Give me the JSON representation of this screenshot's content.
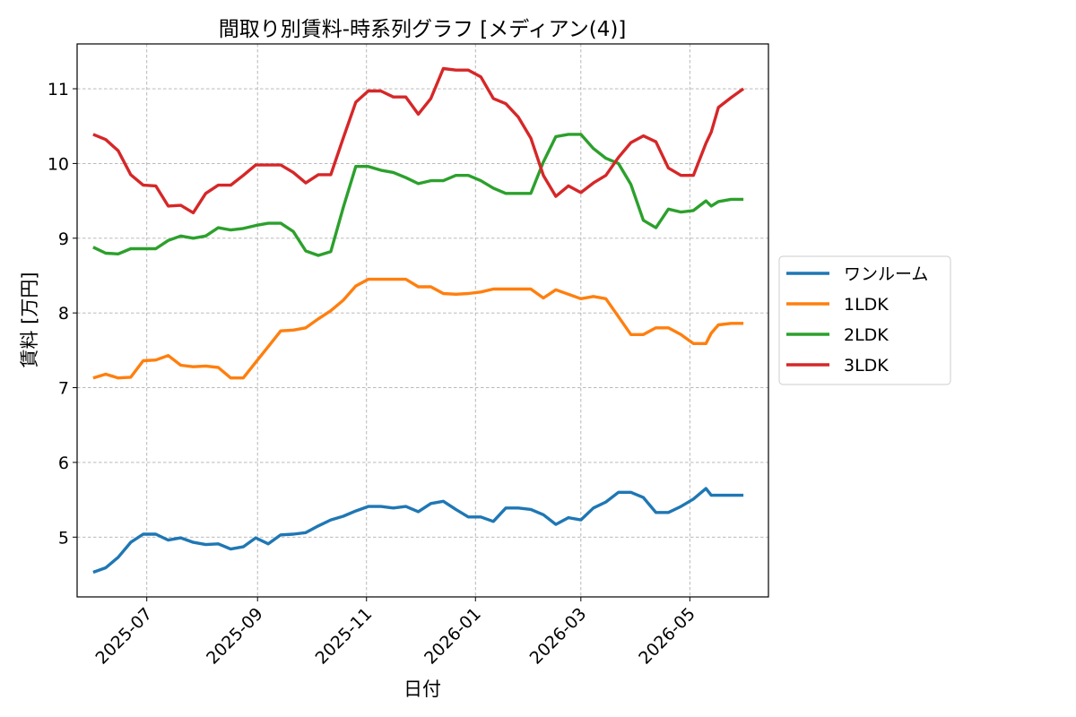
{
  "chart_data": {
    "type": "line",
    "title": "間取り別賃料-時系列グラフ [メディアン(4)]",
    "xlabel": "日付",
    "ylabel": "賃料 [万円]",
    "x_tick_labels": [
      "2025-07",
      "2025-09",
      "2025-11",
      "2026-01",
      "2026-03",
      "2026-05"
    ],
    "x_tick_dates": [
      "2025-07-01",
      "2025-09-01",
      "2025-11-01",
      "2026-01-01",
      "2026-03-01",
      "2026-05-01"
    ],
    "y_ticks": [
      5,
      6,
      7,
      8,
      9,
      10,
      11
    ],
    "ylim": [
      4.2,
      11.6
    ],
    "xlim": [
      "2025-05-23",
      "2026-06-14"
    ],
    "grid": true,
    "legend_position": "center-right-outside",
    "x": [
      "2025-06-01",
      "2025-06-08",
      "2025-06-15",
      "2025-06-22",
      "2025-06-29",
      "2025-07-06",
      "2025-07-13",
      "2025-07-20",
      "2025-07-27",
      "2025-08-03",
      "2025-08-10",
      "2025-08-17",
      "2025-08-24",
      "2025-08-31",
      "2025-09-07",
      "2025-09-14",
      "2025-09-21",
      "2025-09-28",
      "2025-10-05",
      "2025-10-12",
      "2025-10-19",
      "2025-10-26",
      "2025-11-02",
      "2025-11-09",
      "2025-11-16",
      "2025-11-23",
      "2025-11-30",
      "2025-12-07",
      "2025-12-14",
      "2025-12-21",
      "2025-12-28",
      "2026-01-04",
      "2026-01-11",
      "2026-01-18",
      "2026-01-25",
      "2026-02-01",
      "2026-02-08",
      "2026-02-15",
      "2026-02-22",
      "2026-03-01",
      "2026-03-08",
      "2026-03-15",
      "2026-03-22",
      "2026-03-29",
      "2026-04-05",
      "2026-04-12",
      "2026-04-19",
      "2026-04-26",
      "2026-05-03",
      "2026-05-10",
      "2026-05-13",
      "2026-05-17",
      "2026-05-24",
      "2026-05-31"
    ],
    "series": [
      {
        "name": "ワンルーム",
        "color": "#1f77b4",
        "values": [
          4.53,
          4.59,
          4.73,
          4.93,
          5.04,
          5.04,
          4.96,
          4.99,
          4.93,
          4.9,
          4.91,
          4.84,
          4.87,
          4.99,
          4.91,
          5.03,
          5.04,
          5.06,
          5.15,
          5.23,
          5.28,
          5.35,
          5.41,
          5.41,
          5.39,
          5.41,
          5.34,
          5.45,
          5.48,
          5.37,
          5.27,
          5.27,
          5.21,
          5.39,
          5.39,
          5.37,
          5.3,
          5.17,
          5.26,
          5.23,
          5.39,
          5.47,
          5.6,
          5.6,
          5.53,
          5.33,
          5.33,
          5.41,
          5.51,
          5.65,
          5.56,
          5.56,
          5.56,
          5.56
        ]
      },
      {
        "name": "1LDK",
        "color": "#ff7f0e",
        "values": [
          7.13,
          7.18,
          7.13,
          7.14,
          7.36,
          7.37,
          7.43,
          7.3,
          7.28,
          7.29,
          7.27,
          7.13,
          7.13,
          7.34,
          7.55,
          7.76,
          7.77,
          7.8,
          7.92,
          8.03,
          8.17,
          8.36,
          8.45,
          8.45,
          8.45,
          8.45,
          8.35,
          8.35,
          8.26,
          8.25,
          8.26,
          8.28,
          8.32,
          8.32,
          8.32,
          8.32,
          8.2,
          8.31,
          8.25,
          8.19,
          8.22,
          8.19,
          7.95,
          7.71,
          7.71,
          7.8,
          7.8,
          7.71,
          7.59,
          7.59,
          7.73,
          7.84,
          7.86,
          7.86
        ]
      },
      {
        "name": "2LDK",
        "color": "#2ca02c",
        "values": [
          8.88,
          8.8,
          8.79,
          8.86,
          8.86,
          8.86,
          8.97,
          9.03,
          9.0,
          9.03,
          9.14,
          9.11,
          9.13,
          9.17,
          9.2,
          9.2,
          9.09,
          8.83,
          8.77,
          8.82,
          9.41,
          9.96,
          9.96,
          9.91,
          9.88,
          9.81,
          9.73,
          9.77,
          9.77,
          9.84,
          9.84,
          9.77,
          9.67,
          9.6,
          9.6,
          9.6,
          10.02,
          10.36,
          10.39,
          10.39,
          10.2,
          10.07,
          10.0,
          9.72,
          9.24,
          9.14,
          9.39,
          9.35,
          9.37,
          9.5,
          9.43,
          9.49,
          9.52,
          9.52
        ]
      },
      {
        "name": "3LDK",
        "color": "#d62728",
        "values": [
          10.39,
          10.32,
          10.17,
          9.85,
          9.71,
          9.7,
          9.43,
          9.44,
          9.34,
          9.6,
          9.71,
          9.71,
          9.84,
          9.98,
          9.98,
          9.98,
          9.88,
          9.74,
          9.85,
          9.85,
          10.34,
          10.82,
          10.97,
          10.97,
          10.89,
          10.89,
          10.66,
          10.87,
          11.27,
          11.25,
          11.25,
          11.16,
          10.87,
          10.8,
          10.62,
          10.34,
          9.84,
          9.56,
          9.7,
          9.61,
          9.74,
          9.84,
          10.08,
          10.28,
          10.37,
          10.29,
          9.94,
          9.84,
          9.84,
          10.27,
          10.42,
          10.75,
          10.88,
          11.0
        ]
      }
    ]
  }
}
